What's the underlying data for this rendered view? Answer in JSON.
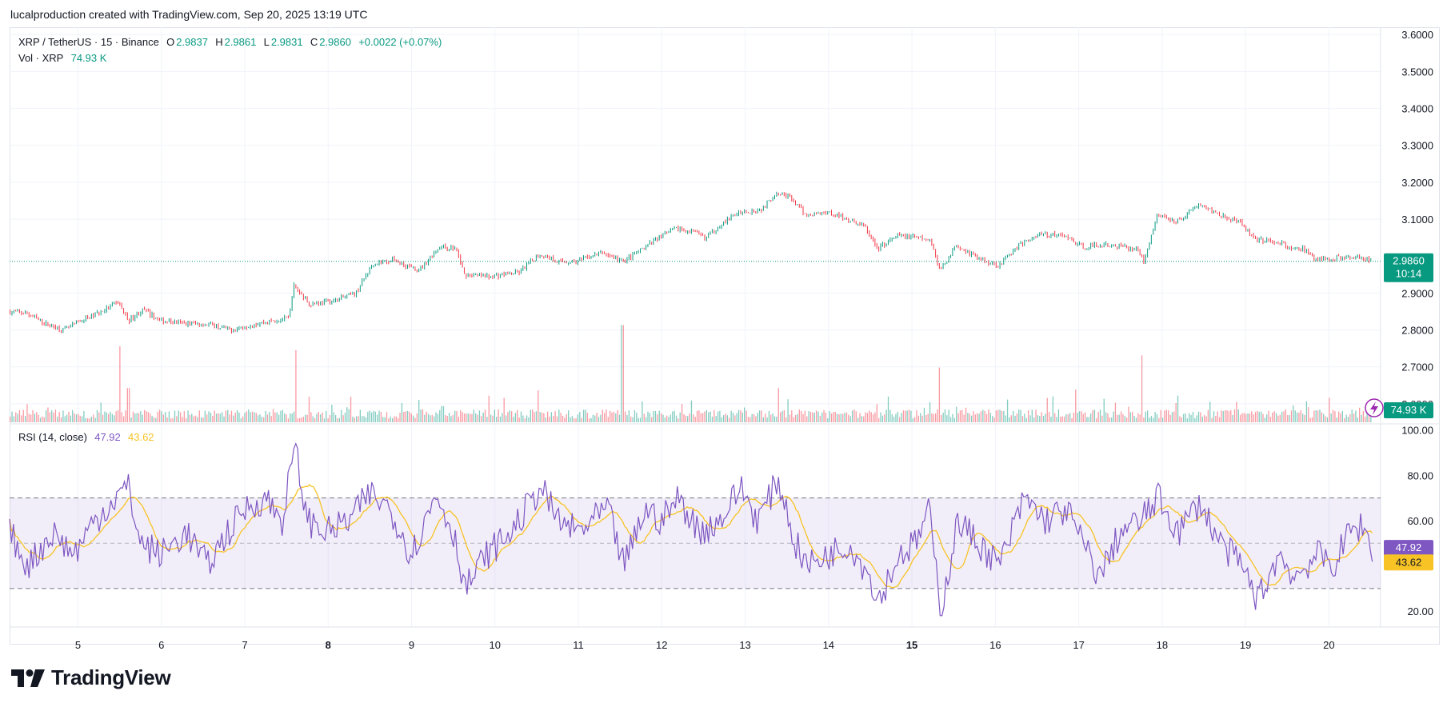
{
  "caption": "lucalproduction created with TradingView.com, Sep 20, 2025 13:19 UTC",
  "brand": {
    "name": "TradingView"
  },
  "legend": {
    "symbol": "XRP / TetherUS · 15 · Binance",
    "open_label": "O",
    "open": "2.9837",
    "high_label": "H",
    "high": "2.9861",
    "low_label": "L",
    "low": "2.9831",
    "close_label": "C",
    "close": "2.9860",
    "change": "+0.0022 (+0.07%)",
    "vol_label": "Vol · XRP",
    "vol_value": "74.93 K",
    "rsi_label": "RSI (14, close)",
    "rsi_value": "47.92",
    "rsi_ma_value": "43.62"
  },
  "badges": {
    "price": "2.9860",
    "countdown": "10:14",
    "volume": "74.93 K",
    "rsi": "47.92",
    "rsi_ma": "43.62"
  },
  "colors": {
    "up": "#089981",
    "down": "#f23645",
    "rsi": "#7e57c2",
    "rsi_ma": "#f7c325",
    "rsi_band": "#7e57c2",
    "grid": "#f0f3fa"
  },
  "chart_data": [
    {
      "type": "candlestick",
      "title": "XRP / TetherUS · 15 · Binance",
      "interval": "15",
      "x_ticks": [
        {
          "day": 5,
          "label": "5"
        },
        {
          "day": 6,
          "label": "6"
        },
        {
          "day": 7,
          "label": "7"
        },
        {
          "day": 8,
          "label": "8",
          "bold": true
        },
        {
          "day": 9,
          "label": "9"
        },
        {
          "day": 10,
          "label": "10"
        },
        {
          "day": 11,
          "label": "11"
        },
        {
          "day": 12,
          "label": "12"
        },
        {
          "day": 13,
          "label": "13"
        },
        {
          "day": 14,
          "label": "14"
        },
        {
          "day": 15,
          "label": "15",
          "bold": true
        },
        {
          "day": 16,
          "label": "16"
        },
        {
          "day": 17,
          "label": "17"
        },
        {
          "day": 18,
          "label": "18"
        },
        {
          "day": 19,
          "label": "19"
        },
        {
          "day": 20,
          "label": "20"
        }
      ],
      "x_range": [
        4.18,
        20.62
      ],
      "y_ticks": [
        "3.6000",
        "3.5000",
        "3.4000",
        "3.3000",
        "3.2000",
        "3.1000",
        "2.9000",
        "2.8000",
        "2.7000",
        "2.6000"
      ],
      "ylim": [
        2.55,
        3.62
      ],
      "last_price": 2.986,
      "price_path": [
        [
          4.18,
          2.85
        ],
        [
          4.4,
          2.845
        ],
        [
          4.65,
          2.815
        ],
        [
          4.85,
          2.8
        ],
        [
          5.05,
          2.825
        ],
        [
          5.3,
          2.85
        ],
        [
          5.5,
          2.875
        ],
        [
          5.62,
          2.825
        ],
        [
          5.8,
          2.855
        ],
        [
          6.0,
          2.825
        ],
        [
          6.3,
          2.818
        ],
        [
          6.6,
          2.815
        ],
        [
          6.85,
          2.8
        ],
        [
          7.1,
          2.815
        ],
        [
          7.35,
          2.825
        ],
        [
          7.55,
          2.832
        ],
        [
          7.6,
          2.92
        ],
        [
          7.8,
          2.87
        ],
        [
          8.1,
          2.88
        ],
        [
          8.35,
          2.9
        ],
        [
          8.55,
          2.98
        ],
        [
          8.8,
          2.99
        ],
        [
          9.1,
          2.96
        ],
        [
          9.35,
          3.025
        ],
        [
          9.55,
          3.02
        ],
        [
          9.65,
          2.95
        ],
        [
          9.95,
          2.945
        ],
        [
          10.3,
          2.955
        ],
        [
          10.55,
          3.005
        ],
        [
          10.8,
          2.985
        ],
        [
          11.0,
          2.985
        ],
        [
          11.3,
          3.01
        ],
        [
          11.55,
          2.985
        ],
        [
          11.8,
          3.02
        ],
        [
          12.0,
          3.055
        ],
        [
          12.2,
          3.075
        ],
        [
          12.4,
          3.065
        ],
        [
          12.55,
          3.05
        ],
        [
          12.75,
          3.09
        ],
        [
          12.95,
          3.12
        ],
        [
          13.2,
          3.125
        ],
        [
          13.4,
          3.175
        ],
        [
          13.55,
          3.16
        ],
        [
          13.75,
          3.11
        ],
        [
          14.0,
          3.12
        ],
        [
          14.25,
          3.1
        ],
        [
          14.45,
          3.08
        ],
        [
          14.6,
          3.02
        ],
        [
          14.85,
          3.055
        ],
        [
          15.1,
          3.05
        ],
        [
          15.25,
          3.04
        ],
        [
          15.35,
          2.96
        ],
        [
          15.55,
          3.03
        ],
        [
          15.8,
          2.995
        ],
        [
          16.05,
          2.975
        ],
        [
          16.3,
          3.03
        ],
        [
          16.55,
          3.06
        ],
        [
          16.85,
          3.055
        ],
        [
          17.05,
          3.025
        ],
        [
          17.3,
          3.03
        ],
        [
          17.55,
          3.025
        ],
        [
          17.72,
          3.02
        ],
        [
          17.8,
          2.985
        ],
        [
          17.95,
          3.11
        ],
        [
          18.2,
          3.095
        ],
        [
          18.45,
          3.14
        ],
        [
          18.7,
          3.115
        ],
        [
          18.95,
          3.09
        ],
        [
          19.15,
          3.045
        ],
        [
          19.4,
          3.04
        ],
        [
          19.55,
          3.02
        ],
        [
          19.7,
          3.02
        ],
        [
          19.85,
          2.99
        ],
        [
          20.1,
          2.995
        ],
        [
          20.35,
          3.0
        ],
        [
          20.52,
          2.986
        ]
      ],
      "volume_spikes": [
        {
          "day": 5.5,
          "value": 1.0
        },
        {
          "day": 5.6,
          "value": 0.45
        },
        {
          "day": 7.6,
          "value": 0.95
        },
        {
          "day": 10.52,
          "value": 0.42
        },
        {
          "day": 11.52,
          "value": 1.28
        },
        {
          "day": 13.4,
          "value": 0.45
        },
        {
          "day": 15.33,
          "value": 0.72
        },
        {
          "day": 16.95,
          "value": 0.43
        },
        {
          "day": 17.75,
          "value": 0.88
        }
      ]
    },
    {
      "type": "line",
      "title": "RSI (14, close)",
      "ylim": [
        13,
        102
      ],
      "y_ticks": [
        "100.00",
        "80.00",
        "60.00",
        "20.00"
      ],
      "bands": {
        "upper": 70,
        "middle": 50,
        "lower": 30
      },
      "series": [
        {
          "name": "RSI",
          "last": 47.92
        },
        {
          "name": "RSI-based MA",
          "last": 43.62
        }
      ],
      "rsi_path": [
        [
          4.18,
          55
        ],
        [
          4.4,
          40
        ],
        [
          4.7,
          55
        ],
        [
          4.95,
          45
        ],
        [
          5.2,
          60
        ],
        [
          5.45,
          70
        ],
        [
          5.6,
          75
        ],
        [
          5.75,
          50
        ],
        [
          6.0,
          45
        ],
        [
          6.3,
          55
        ],
        [
          6.55,
          40
        ],
        [
          6.8,
          55
        ],
        [
          7.0,
          65
        ],
        [
          7.25,
          70
        ],
        [
          7.45,
          60
        ],
        [
          7.6,
          93
        ],
        [
          7.75,
          60
        ],
        [
          8.0,
          55
        ],
        [
          8.25,
          60
        ],
        [
          8.5,
          72
        ],
        [
          8.75,
          65
        ],
        [
          9.0,
          45
        ],
        [
          9.3,
          72
        ],
        [
          9.5,
          55
        ],
        [
          9.65,
          30
        ],
        [
          9.9,
          45
        ],
        [
          10.2,
          55
        ],
        [
          10.55,
          75
        ],
        [
          10.75,
          60
        ],
        [
          11.0,
          55
        ],
        [
          11.35,
          65
        ],
        [
          11.55,
          40
        ],
        [
          11.8,
          65
        ],
        [
          12.0,
          60
        ],
        [
          12.2,
          70
        ],
        [
          12.45,
          55
        ],
        [
          12.7,
          60
        ],
        [
          12.95,
          75
        ],
        [
          13.15,
          60
        ],
        [
          13.4,
          78
        ],
        [
          13.6,
          50
        ],
        [
          13.75,
          40
        ],
        [
          14.0,
          45
        ],
        [
          14.25,
          50
        ],
        [
          14.5,
          35
        ],
        [
          14.6,
          25
        ],
        [
          14.85,
          45
        ],
        [
          15.05,
          50
        ],
        [
          15.2,
          65
        ],
        [
          15.35,
          20
        ],
        [
          15.55,
          60
        ],
        [
          15.8,
          50
        ],
        [
          16.05,
          40
        ],
        [
          16.35,
          70
        ],
        [
          16.6,
          60
        ],
        [
          16.85,
          65
        ],
        [
          17.05,
          50
        ],
        [
          17.25,
          35
        ],
        [
          17.5,
          55
        ],
        [
          17.75,
          60
        ],
        [
          17.95,
          70
        ],
        [
          18.2,
          55
        ],
        [
          18.45,
          68
        ],
        [
          18.7,
          50
        ],
        [
          18.95,
          40
        ],
        [
          19.15,
          25
        ],
        [
          19.4,
          45
        ],
        [
          19.6,
          35
        ],
        [
          19.85,
          45
        ],
        [
          20.05,
          40
        ],
        [
          20.25,
          55
        ],
        [
          20.4,
          58
        ],
        [
          20.52,
          47.92
        ]
      ]
    }
  ]
}
